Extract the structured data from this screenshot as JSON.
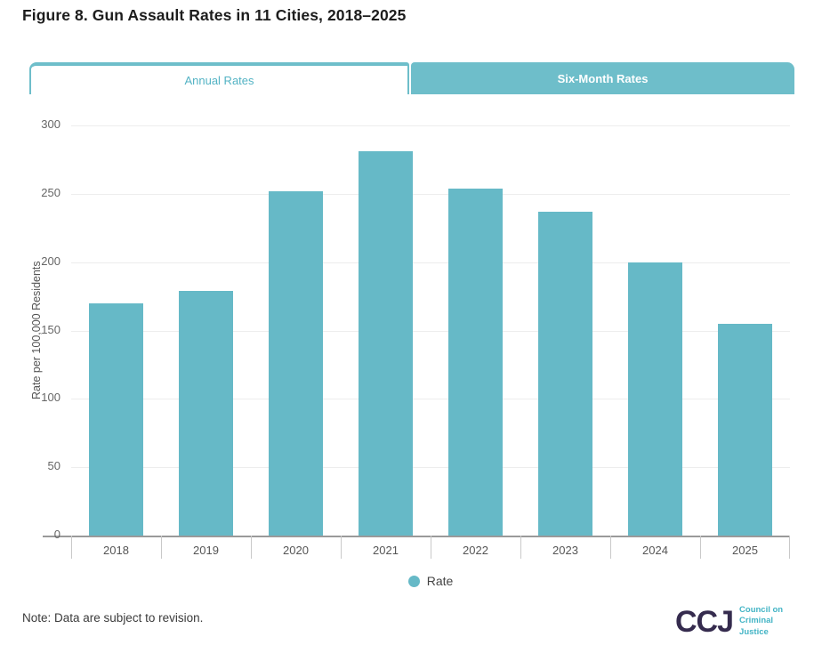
{
  "page": {
    "title": "Figure 8. Gun Assault Rates in 11 Cities, 2018–2025"
  },
  "tabs": {
    "annual": {
      "label": "Annual Rates",
      "active": true
    },
    "six_month": {
      "label": "Six-Month Rates",
      "active": false
    }
  },
  "chart_data": {
    "type": "bar",
    "title": "Figure 8. Gun Assault Rates in 11 Cities, 2018–2025",
    "categories": [
      "2018",
      "2019",
      "2020",
      "2021",
      "2022",
      "2023",
      "2024",
      "2025"
    ],
    "values": [
      170,
      179,
      252,
      281,
      254,
      237,
      200,
      155
    ],
    "series_name": "Rate",
    "xlabel": "",
    "ylabel": "Rate per 100,000 Residents",
    "ylim": [
      0,
      300
    ],
    "yticks": [
      0,
      50,
      100,
      150,
      200,
      250,
      300
    ],
    "grid": true,
    "legend_position": "bottom"
  },
  "note": {
    "text": "Note: Data are subject to revision."
  },
  "logo": {
    "acronym": "CCJ",
    "lines": [
      "Council on",
      "Criminal",
      "Justice"
    ]
  },
  "colors": {
    "bar": "#66b9c7",
    "tab_teal": "#6ebeca",
    "tab_text_active": "#53b3c4",
    "logo_dark": "#352b4e",
    "logo_teal": "#43b4c5",
    "gridline": "#ededed",
    "axis_line": "#9a9a9a"
  }
}
